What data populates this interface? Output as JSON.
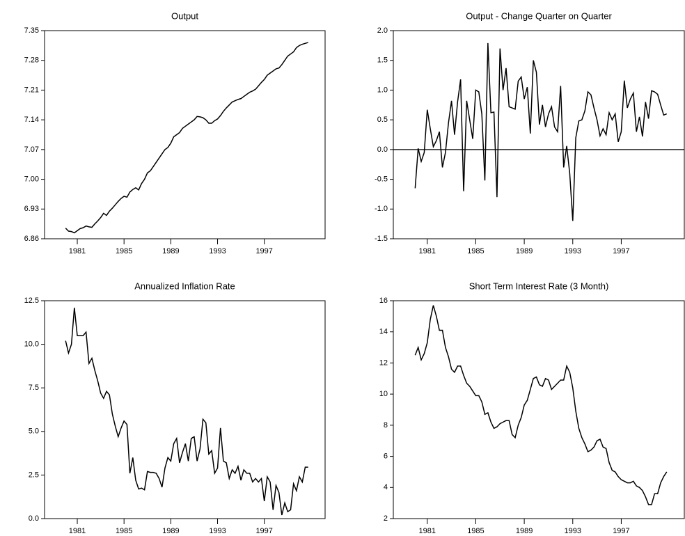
{
  "chart_data": [
    {
      "type": "line",
      "title": "Output",
      "color": "#000000",
      "x": [
        1980,
        1980.25,
        1980.5,
        1980.75,
        1981,
        1981.25,
        1981.5,
        1981.75,
        1982,
        1982.25,
        1982.5,
        1982.75,
        1983,
        1983.25,
        1983.5,
        1983.75,
        1984,
        1984.25,
        1984.5,
        1984.75,
        1985,
        1985.25,
        1985.5,
        1985.75,
        1986,
        1986.25,
        1986.5,
        1986.75,
        1987,
        1987.25,
        1987.5,
        1987.75,
        1988,
        1988.25,
        1988.5,
        1988.75,
        1989,
        1989.25,
        1989.5,
        1989.75,
        1990,
        1990.25,
        1990.5,
        1990.75,
        1991,
        1991.25,
        1991.5,
        1991.75,
        1992,
        1992.25,
        1992.5,
        1992.75,
        1993,
        1993.25,
        1993.5,
        1993.75,
        1994,
        1994.25,
        1994.5,
        1994.75,
        1995,
        1995.25,
        1995.5,
        1995.75,
        1996,
        1996.25,
        1996.5,
        1996.75,
        1997,
        1997.25,
        1997.5,
        1997.75,
        1998,
        1998.25,
        1998.5,
        1998.75,
        1999,
        1999.25,
        1999.5,
        1999.75,
        2000,
        2000.25,
        2000.5,
        2000.75
      ],
      "values": [
        6.885,
        6.878,
        6.877,
        6.874,
        6.879,
        6.884,
        6.886,
        6.89,
        6.888,
        6.887,
        6.895,
        6.902,
        6.91,
        6.92,
        6.915,
        6.925,
        6.932,
        6.94,
        6.948,
        6.955,
        6.96,
        6.958,
        6.97,
        6.976,
        6.98,
        6.975,
        6.99,
        7.0,
        7.015,
        7.02,
        7.03,
        7.04,
        7.05,
        7.06,
        7.07,
        7.075,
        7.085,
        7.1,
        7.105,
        7.11,
        7.12,
        7.125,
        7.13,
        7.135,
        7.14,
        7.148,
        7.147,
        7.145,
        7.14,
        7.132,
        7.132,
        7.138,
        7.142,
        7.15,
        7.16,
        7.168,
        7.175,
        7.182,
        7.185,
        7.188,
        7.19,
        7.195,
        7.2,
        7.205,
        7.208,
        7.212,
        7.22,
        7.228,
        7.235,
        7.245,
        7.25,
        7.255,
        7.26,
        7.262,
        7.27,
        7.28,
        7.29,
        7.295,
        7.3,
        7.31,
        7.315,
        7.318,
        7.32,
        7.322
      ],
      "xlim": [
        1978.2,
        2002.2
      ],
      "xticks": [
        1981,
        1985,
        1989,
        1993,
        1997
      ],
      "ylim": [
        6.86,
        7.35
      ],
      "yticks": [
        {
          "value": 6.86,
          "label": "6.86"
        },
        {
          "value": 6.93,
          "label": "6.93"
        },
        {
          "value": 7,
          "label": "7.00"
        },
        {
          "value": 7.07,
          "label": "7.07"
        },
        {
          "value": 7.14,
          "label": "7.14"
        },
        {
          "value": 7.21,
          "label": "7.21"
        },
        {
          "value": 7.28,
          "label": "7.28"
        },
        {
          "value": 7.35,
          "label": "7.35"
        }
      ],
      "zero_line": false
    },
    {
      "type": "line",
      "title": "Output - Change Quarter on Quarter",
      "color": "#000000",
      "x": [
        1980,
        1980.25,
        1980.5,
        1980.75,
        1981,
        1981.25,
        1981.5,
        1981.75,
        1982,
        1982.25,
        1982.5,
        1982.75,
        1983,
        1983.25,
        1983.5,
        1983.75,
        1984,
        1984.25,
        1984.5,
        1984.75,
        1985,
        1985.25,
        1985.5,
        1985.75,
        1986,
        1986.25,
        1986.5,
        1986.75,
        1987,
        1987.25,
        1987.5,
        1987.75,
        1988,
        1988.25,
        1988.5,
        1988.75,
        1989,
        1989.25,
        1989.5,
        1989.75,
        1990,
        1990.25,
        1990.5,
        1990.75,
        1991,
        1991.25,
        1991.5,
        1991.75,
        1992,
        1992.25,
        1992.5,
        1992.75,
        1993,
        1993.25,
        1993.5,
        1993.75,
        1994,
        1994.25,
        1994.5,
        1994.75,
        1995,
        1995.25,
        1995.5,
        1995.75,
        1996,
        1996.25,
        1996.5,
        1996.75,
        1997,
        1997.25,
        1997.5,
        1997.75,
        1998,
        1998.25,
        1998.5,
        1998.75,
        1999,
        1999.25,
        1999.5,
        1999.75,
        2000,
        2000.25,
        2000.5,
        2000.75
      ],
      "values": [
        -0.65,
        0.02,
        -0.2,
        -0.05,
        0.67,
        0.35,
        0.05,
        0.15,
        0.3,
        -0.3,
        -0.05,
        0.45,
        0.82,
        0.25,
        0.8,
        1.18,
        -0.7,
        0.82,
        0.5,
        0.18,
        1.0,
        0.97,
        0.6,
        -0.52,
        1.79,
        0.62,
        0.63,
        -0.8,
        1.7,
        1.0,
        1.37,
        0.72,
        0.7,
        0.68,
        1.15,
        1.22,
        0.85,
        1.05,
        0.27,
        1.5,
        1.3,
        0.42,
        0.75,
        0.38,
        0.6,
        0.72,
        0.38,
        0.3,
        1.07,
        -0.3,
        0.06,
        -0.4,
        -1.2,
        0.2,
        0.48,
        0.5,
        0.65,
        0.97,
        0.92,
        0.7,
        0.5,
        0.23,
        0.35,
        0.25,
        0.62,
        0.5,
        0.6,
        0.13,
        0.3,
        1.16,
        0.7,
        0.85,
        0.95,
        0.3,
        0.55,
        0.22,
        0.8,
        0.52,
        0.99,
        0.97,
        0.93,
        0.75,
        0.58,
        0.6
      ],
      "xlim": [
        1978.2,
        2002.2
      ],
      "xticks": [
        1981,
        1985,
        1989,
        1993,
        1997
      ],
      "ylim": [
        -1.5,
        2.0
      ],
      "yticks": [
        {
          "value": -1.5,
          "label": "-1.5"
        },
        {
          "value": -1,
          "label": "-1.0"
        },
        {
          "value": -0.5,
          "label": "-0.5"
        },
        {
          "value": 0,
          "label": "0.0"
        },
        {
          "value": 0.5,
          "label": "0.5"
        },
        {
          "value": 1,
          "label": "1.0"
        },
        {
          "value": 1.5,
          "label": "1.5"
        },
        {
          "value": 2,
          "label": "2.0"
        }
      ],
      "zero_line": true
    },
    {
      "type": "line",
      "title": "Annualized Inflation Rate",
      "color": "#000000",
      "x": [
        1980,
        1980.25,
        1980.5,
        1980.75,
        1981,
        1981.25,
        1981.5,
        1981.75,
        1982,
        1982.25,
        1982.5,
        1982.75,
        1983,
        1983.25,
        1983.5,
        1983.75,
        1984,
        1984.25,
        1984.5,
        1984.75,
        1985,
        1985.25,
        1985.5,
        1985.75,
        1986,
        1986.25,
        1986.5,
        1986.75,
        1987,
        1987.25,
        1987.5,
        1987.75,
        1988,
        1988.25,
        1988.5,
        1988.75,
        1989,
        1989.25,
        1989.5,
        1989.75,
        1990,
        1990.25,
        1990.5,
        1990.75,
        1991,
        1991.25,
        1991.5,
        1991.75,
        1992,
        1992.25,
        1992.5,
        1992.75,
        1993,
        1993.25,
        1993.5,
        1993.75,
        1994,
        1994.25,
        1994.5,
        1994.75,
        1995,
        1995.25,
        1995.5,
        1995.75,
        1996,
        1996.25,
        1996.5,
        1996.75,
        1997,
        1997.25,
        1997.5,
        1997.75,
        1998,
        1998.25,
        1998.5,
        1998.75,
        1999,
        1999.25,
        1999.5,
        1999.75,
        2000,
        2000.25,
        2000.5,
        2000.75
      ],
      "values": [
        10.2,
        9.5,
        10.0,
        12.1,
        10.5,
        10.5,
        10.5,
        10.7,
        8.9,
        9.2,
        8.5,
        7.9,
        7.2,
        6.9,
        7.3,
        7.1,
        6.0,
        5.3,
        4.7,
        5.2,
        5.6,
        5.4,
        2.6,
        3.5,
        2.2,
        1.7,
        1.75,
        1.65,
        2.7,
        2.65,
        2.65,
        2.6,
        2.3,
        1.8,
        2.9,
        3.5,
        3.3,
        4.3,
        4.6,
        3.2,
        3.8,
        4.3,
        3.3,
        4.6,
        4.7,
        3.3,
        4.0,
        5.7,
        5.5,
        3.7,
        3.9,
        2.6,
        2.9,
        5.2,
        3.3,
        3.2,
        2.3,
        2.8,
        2.6,
        3.0,
        2.2,
        2.8,
        2.6,
        2.6,
        2.1,
        2.3,
        2.1,
        2.3,
        1.0,
        2.4,
        2.1,
        0.5,
        1.9,
        1.5,
        0.2,
        0.9,
        0.4,
        0.5,
        2.0,
        1.6,
        2.4,
        2.1,
        2.95,
        2.95
      ],
      "xlim": [
        1978.2,
        2002.2
      ],
      "xticks": [
        1981,
        1985,
        1989,
        1993,
        1997
      ],
      "ylim": [
        0,
        12.5
      ],
      "yticks": [
        {
          "value": 0,
          "label": "0.0"
        },
        {
          "value": 2.5,
          "label": "2.5"
        },
        {
          "value": 5,
          "label": "5.0"
        },
        {
          "value": 7.5,
          "label": "7.5"
        },
        {
          "value": 10,
          "label": "10.0"
        },
        {
          "value": 12.5,
          "label": "12.5"
        }
      ],
      "zero_line": false
    },
    {
      "type": "line",
      "title": "Short Term Interest Rate (3 Month)",
      "color": "#000000",
      "x": [
        1980,
        1980.25,
        1980.5,
        1980.75,
        1981,
        1981.25,
        1981.5,
        1981.75,
        1982,
        1982.25,
        1982.5,
        1982.75,
        1983,
        1983.25,
        1983.5,
        1983.75,
        1984,
        1984.25,
        1984.5,
        1984.75,
        1985,
        1985.25,
        1985.5,
        1985.75,
        1986,
        1986.25,
        1986.5,
        1986.75,
        1987,
        1987.25,
        1987.5,
        1987.75,
        1988,
        1988.25,
        1988.5,
        1988.75,
        1989,
        1989.25,
        1989.5,
        1989.75,
        1990,
        1990.25,
        1990.5,
        1990.75,
        1991,
        1991.25,
        1991.5,
        1991.75,
        1992,
        1992.25,
        1992.5,
        1992.75,
        1993,
        1993.25,
        1993.5,
        1993.75,
        1994,
        1994.25,
        1994.5,
        1994.75,
        1995,
        1995.25,
        1995.5,
        1995.75,
        1996,
        1996.25,
        1996.5,
        1996.75,
        1997,
        1997.25,
        1997.5,
        1997.75,
        1998,
        1998.25,
        1998.5,
        1998.75,
        1999,
        1999.25,
        1999.5,
        1999.75,
        2000,
        2000.25,
        2000.5,
        2000.75
      ],
      "values": [
        12.5,
        13.0,
        12.2,
        12.6,
        13.3,
        14.8,
        15.7,
        15.0,
        14.1,
        14.1,
        13.0,
        12.4,
        11.6,
        11.4,
        11.8,
        11.8,
        11.2,
        10.7,
        10.5,
        10.2,
        9.9,
        9.9,
        9.5,
        8.7,
        8.8,
        8.2,
        7.8,
        7.9,
        8.1,
        8.2,
        8.3,
        8.3,
        7.4,
        7.2,
        8.0,
        8.5,
        9.3,
        9.6,
        10.3,
        11.0,
        11.1,
        10.6,
        10.5,
        11.0,
        10.9,
        10.3,
        10.5,
        10.7,
        10.9,
        10.9,
        11.8,
        11.4,
        10.4,
        8.9,
        7.8,
        7.2,
        6.8,
        6.3,
        6.4,
        6.6,
        7.0,
        7.1,
        6.6,
        6.5,
        5.6,
        5.1,
        5.0,
        4.7,
        4.5,
        4.4,
        4.3,
        4.3,
        4.4,
        4.1,
        4.0,
        3.8,
        3.4,
        2.9,
        2.9,
        3.6,
        3.6,
        4.3,
        4.7,
        5.0
      ],
      "xlim": [
        1978.2,
        2002.2
      ],
      "xticks": [
        1981,
        1985,
        1989,
        1993,
        1997
      ],
      "ylim": [
        2,
        16
      ],
      "yticks": [
        2,
        4,
        6,
        8,
        10,
        12,
        14,
        16
      ],
      "zero_line": false
    }
  ]
}
